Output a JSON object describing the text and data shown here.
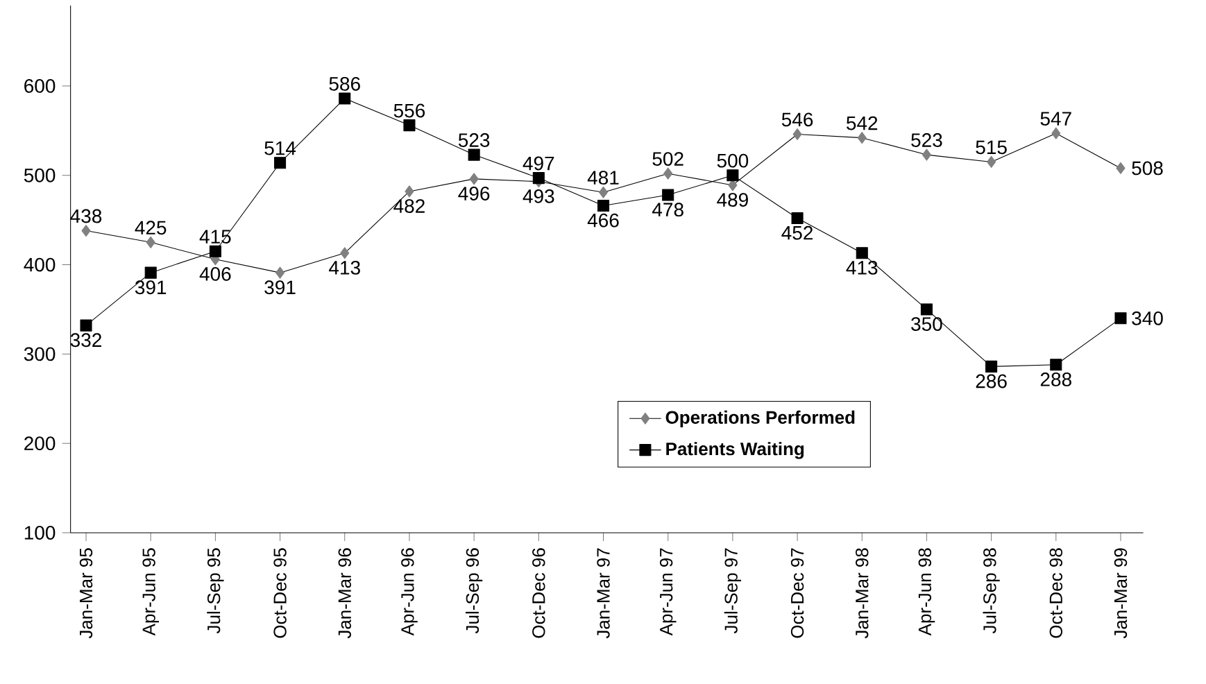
{
  "chart_data": {
    "type": "line",
    "categories": [
      "Jan-Mar 95",
      "Apr-Jun 95",
      "Jul-Sep 95",
      "Oct-Dec 95",
      "Jan-Mar 96",
      "Apr-Jun 96",
      "Jul-Sep 96",
      "Oct-Dec 96",
      "Jan-Mar 97",
      "Apr-Jun 97",
      "Jul-Sep 97",
      "Oct-Dec 97",
      "Jan-Mar 98",
      "Apr-Jun 98",
      "Jul-Sep 98",
      "Oct-Dec 98",
      "Jan-Mar 99"
    ],
    "series": [
      {
        "name": "Operations Performed",
        "color": "#808080",
        "marker": "diamond",
        "values": [
          438,
          425,
          406,
          391,
          413,
          482,
          496,
          493,
          481,
          502,
          489,
          546,
          542,
          523,
          515,
          547,
          508
        ]
      },
      {
        "name": "Patients Waiting",
        "color": "#000000",
        "marker": "square",
        "values": [
          332,
          391,
          415,
          514,
          586,
          556,
          523,
          497,
          466,
          478,
          500,
          452,
          413,
          350,
          286,
          288,
          340
        ]
      }
    ],
    "ylim": [
      100,
      690
    ],
    "yticks": [
      100,
      200,
      300,
      400,
      500,
      600
    ],
    "data_labels": true,
    "grid": false,
    "legend": "bottom right",
    "line_style": "solid"
  }
}
